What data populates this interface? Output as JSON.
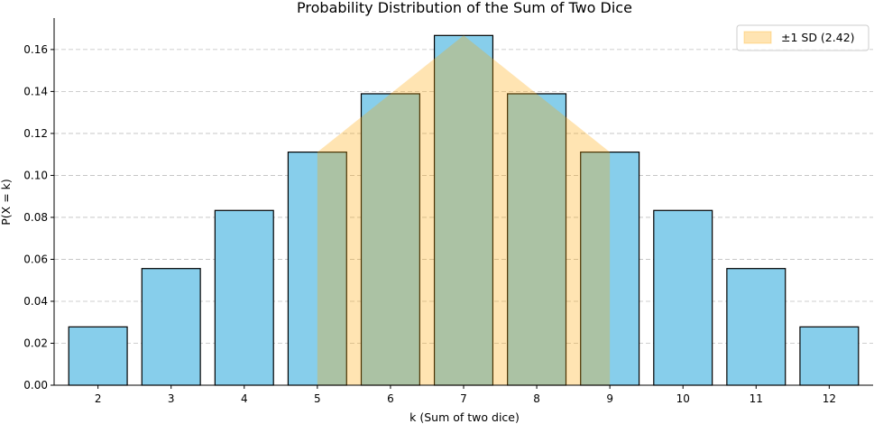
{
  "chart_data": {
    "type": "bar",
    "title": "Probability Distribution of the Sum of Two Dice",
    "xlabel": "k (Sum of two dice)",
    "ylabel": "P(X = k)",
    "categories": [
      "2",
      "3",
      "4",
      "5",
      "6",
      "7",
      "8",
      "9",
      "10",
      "11",
      "12"
    ],
    "x": [
      2,
      3,
      4,
      5,
      6,
      7,
      8,
      9,
      10,
      11,
      12
    ],
    "values": [
      0.0278,
      0.0556,
      0.0833,
      0.1111,
      0.1389,
      0.1667,
      0.1389,
      0.1111,
      0.0833,
      0.0556,
      0.0278
    ],
    "ylim": [
      0,
      0.175
    ],
    "yticks": [
      "0.00",
      "0.02",
      "0.04",
      "0.06",
      "0.08",
      "0.10",
      "0.12",
      "0.14",
      "0.16"
    ],
    "grid": "y-dashed",
    "bar_color": "#87ceeb",
    "band": {
      "label": "±1 SD (2.42)",
      "color": "#ffa500",
      "x": [
        5,
        6,
        7,
        8,
        9
      ],
      "values": [
        0.1111,
        0.1389,
        0.1667,
        0.1389,
        0.1111
      ]
    },
    "legend": {
      "position": "top-right",
      "entries": [
        "±1 SD (2.42)"
      ]
    }
  }
}
